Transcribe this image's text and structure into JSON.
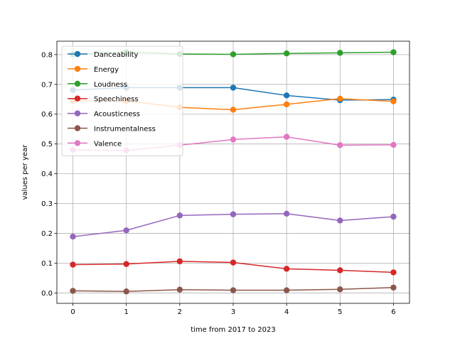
{
  "chart_data": {
    "type": "line",
    "title": "",
    "xlabel": "time from 2017 to 2023",
    "ylabel": "values per year",
    "x": [
      0,
      1,
      2,
      3,
      4,
      5,
      6
    ],
    "xlim": [
      -0.3,
      6.3
    ],
    "ylim": [
      -0.035,
      0.845
    ],
    "xticks": [
      "0",
      "1",
      "2",
      "3",
      "4",
      "5",
      "6"
    ],
    "yticks": [
      "0.0",
      "0.1",
      "0.2",
      "0.3",
      "0.4",
      "0.5",
      "0.6",
      "0.7",
      "0.8"
    ],
    "grid": true,
    "legend_position": "upper-left",
    "series": [
      {
        "name": "Danceability",
        "color": "#1f77b4",
        "values": [
          0.681,
          0.689,
          0.689,
          0.689,
          0.663,
          0.647,
          0.649
        ]
      },
      {
        "name": "Energy",
        "color": "#ff7f0e",
        "values": [
          0.645,
          0.645,
          0.623,
          0.615,
          0.633,
          0.652,
          0.643
        ]
      },
      {
        "name": "Loudness",
        "color": "#2ca02c",
        "values": [
          0.801,
          0.808,
          0.802,
          0.801,
          0.804,
          0.806,
          0.808
        ]
      },
      {
        "name": "Speechiness",
        "color": "#d62728",
        "values": [
          0.095,
          0.097,
          0.106,
          0.102,
          0.081,
          0.076,
          0.069
        ]
      },
      {
        "name": "Acousticness",
        "color": "#9467bd",
        "values": [
          0.189,
          0.21,
          0.26,
          0.264,
          0.266,
          0.243,
          0.256
        ]
      },
      {
        "name": "Instrumentalness",
        "color": "#8c564b",
        "values": [
          0.007,
          0.005,
          0.011,
          0.009,
          0.009,
          0.012,
          0.018
        ]
      },
      {
        "name": "Valence",
        "color": "#e377c2",
        "values": [
          0.48,
          0.478,
          0.496,
          0.515,
          0.524,
          0.496,
          0.497
        ]
      }
    ]
  }
}
